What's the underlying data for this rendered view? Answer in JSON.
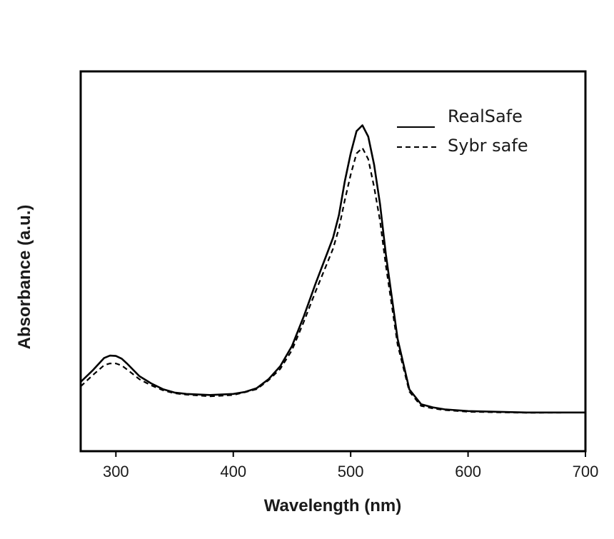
{
  "chart_data": {
    "type": "line",
    "title": "",
    "xlabel": "Wavelength (nm)",
    "ylabel": "Absorbance (a.u.)",
    "xlim": [
      270,
      700
    ],
    "ylim": [
      0,
      1.0
    ],
    "xticks": [
      300,
      400,
      500,
      600,
      700
    ],
    "xtick_labels": [
      "300",
      "400",
      "500",
      "600",
      "700"
    ],
    "yticks_shown": false,
    "grid": false,
    "legend": {
      "position": "top-right"
    },
    "series": [
      {
        "name": "RealSafe",
        "line_style": "solid",
        "color": "#000000",
        "x": [
          270,
          280,
          290,
          295,
          300,
          305,
          310,
          320,
          330,
          340,
          350,
          360,
          380,
          400,
          410,
          420,
          430,
          440,
          450,
          460,
          470,
          480,
          485,
          490,
          495,
          500,
          505,
          510,
          515,
          520,
          525,
          530,
          540,
          550,
          560,
          570,
          580,
          600,
          650,
          700
        ],
        "y": [
          0.202,
          0.235,
          0.272,
          0.279,
          0.278,
          0.27,
          0.254,
          0.219,
          0.198,
          0.181,
          0.171,
          0.167,
          0.164,
          0.167,
          0.173,
          0.184,
          0.21,
          0.248,
          0.307,
          0.393,
          0.488,
          0.578,
          0.623,
          0.689,
          0.787,
          0.869,
          0.934,
          0.951,
          0.918,
          0.836,
          0.721,
          0.574,
          0.328,
          0.18,
          0.137,
          0.128,
          0.122,
          0.117,
          0.113,
          0.113
        ]
      },
      {
        "name": "Sybr safe",
        "line_style": "dashed",
        "color": "#000000",
        "x": [
          270,
          280,
          290,
          295,
          300,
          305,
          310,
          320,
          330,
          340,
          350,
          360,
          380,
          400,
          410,
          420,
          430,
          440,
          450,
          460,
          470,
          480,
          485,
          490,
          495,
          500,
          505,
          510,
          515,
          520,
          525,
          530,
          540,
          550,
          560,
          570,
          580,
          600,
          650,
          700
        ],
        "y": [
          0.189,
          0.221,
          0.251,
          0.256,
          0.256,
          0.25,
          0.237,
          0.21,
          0.192,
          0.178,
          0.169,
          0.165,
          0.16,
          0.164,
          0.172,
          0.181,
          0.207,
          0.24,
          0.295,
          0.377,
          0.465,
          0.549,
          0.591,
          0.65,
          0.732,
          0.807,
          0.869,
          0.885,
          0.852,
          0.771,
          0.672,
          0.541,
          0.311,
          0.174,
          0.132,
          0.125,
          0.12,
          0.115,
          0.112,
          0.113
        ]
      }
    ]
  }
}
